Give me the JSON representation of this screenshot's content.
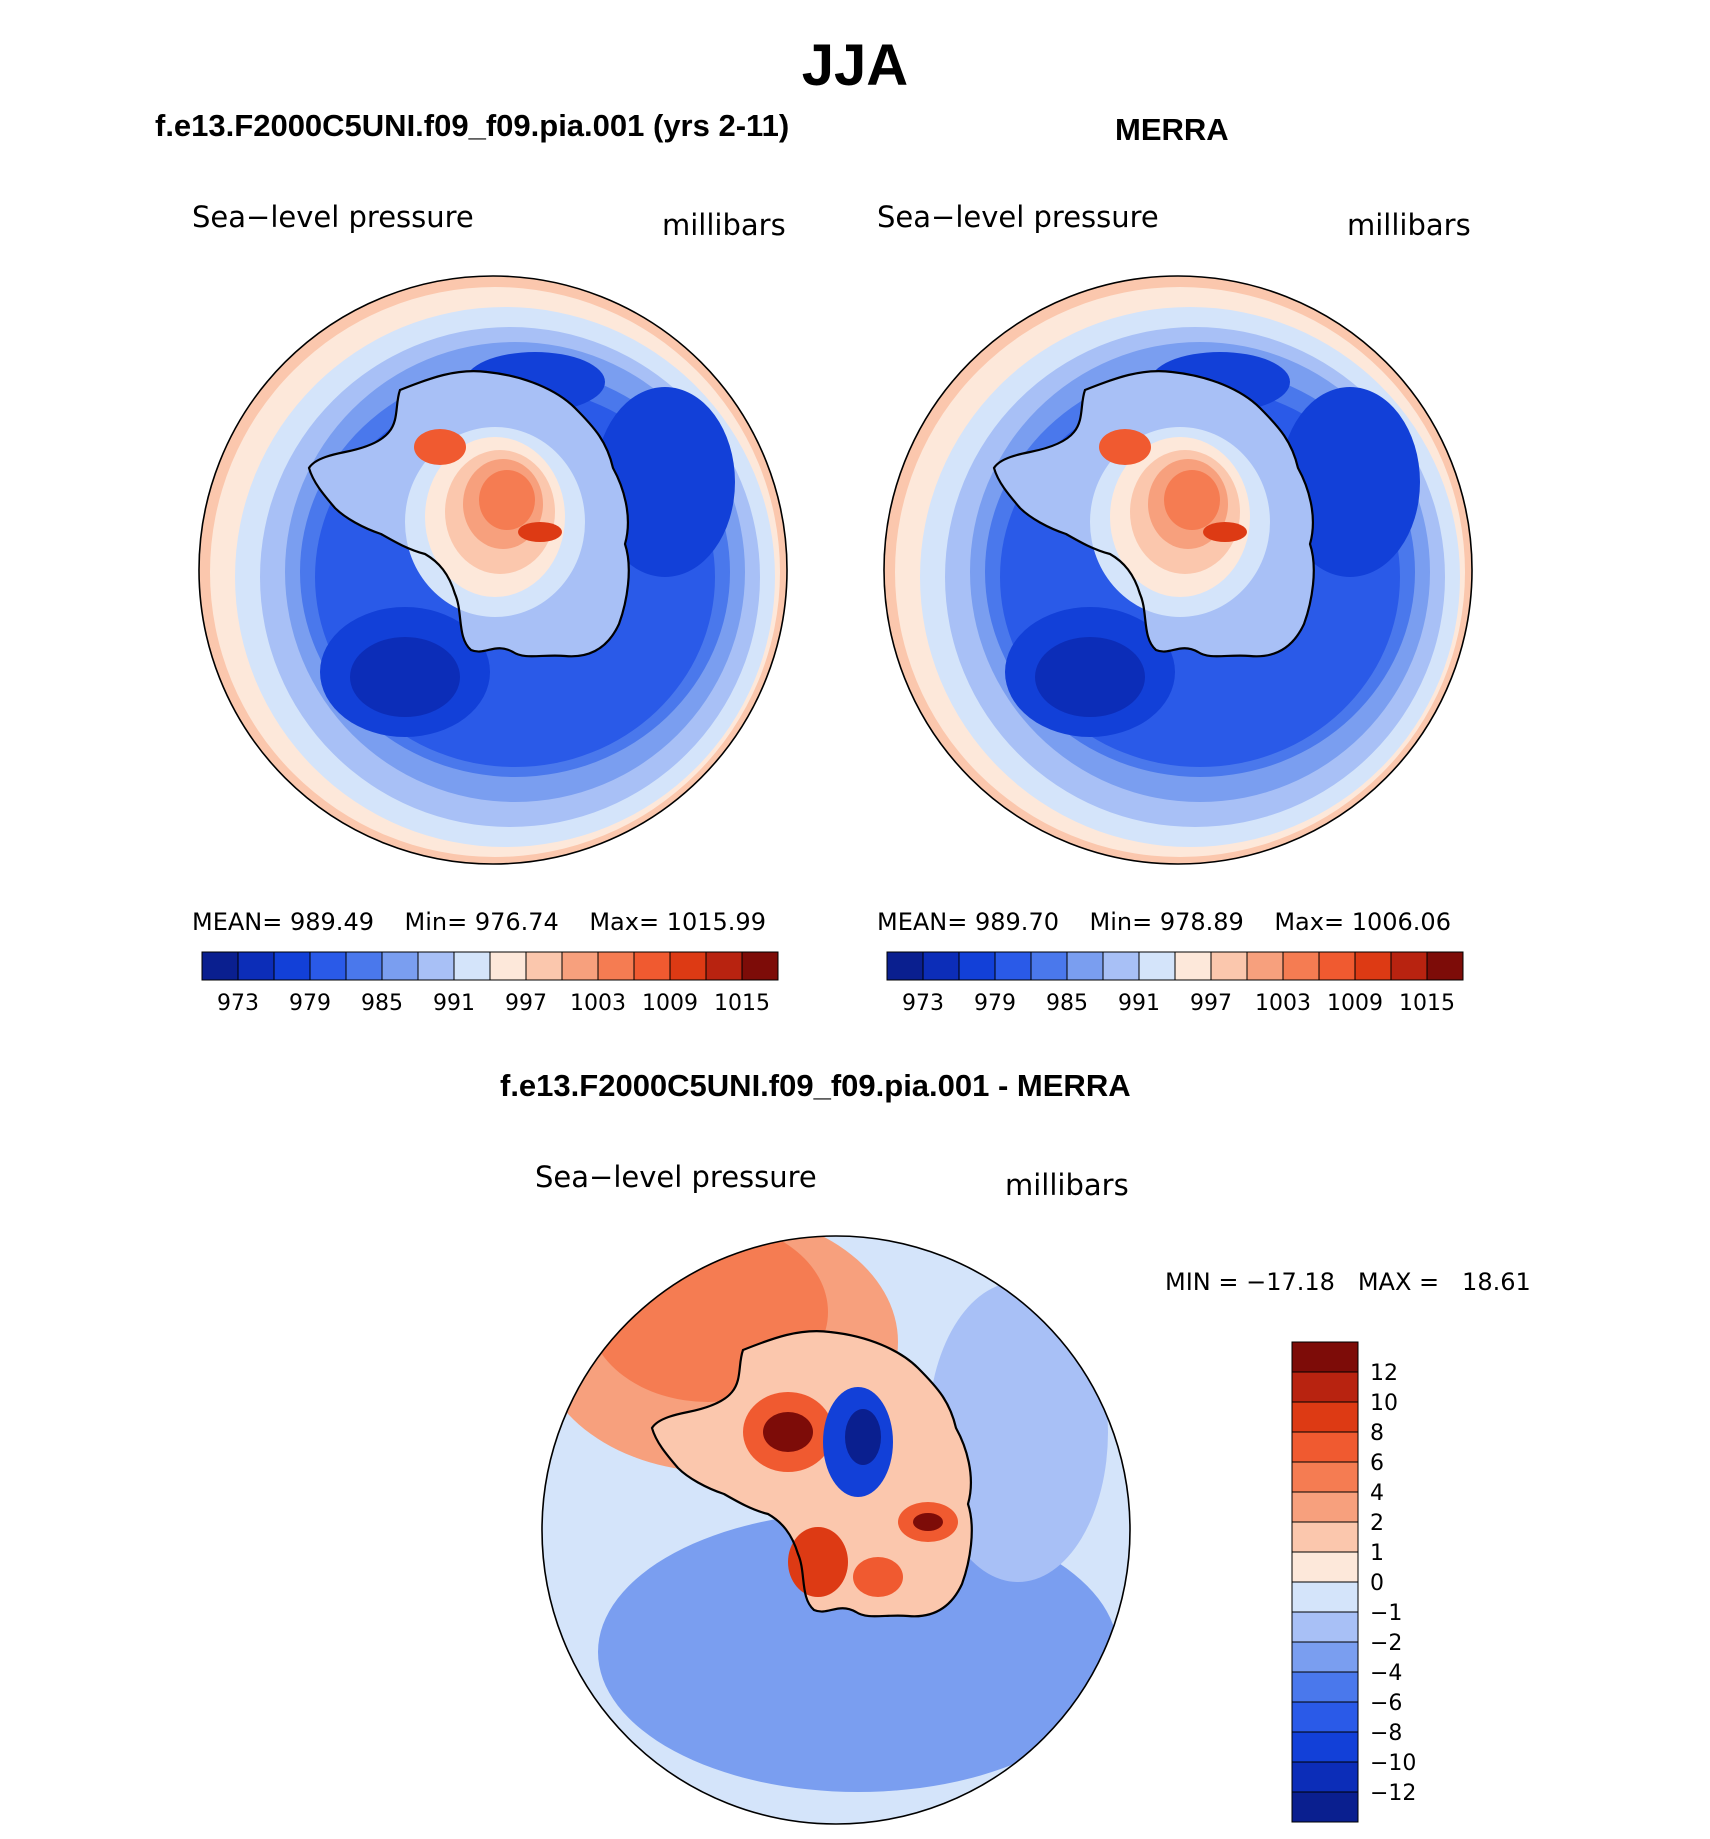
{
  "figure": {
    "season": "JJA",
    "model_title": "f.e13.F2000C5UNI.f09_f09.pia.001 (yrs 2-11)",
    "obs_title": "MERRA",
    "diff_title": "f.e13.F2000C5UNI.f09_f09.pia.001 - MERRA"
  },
  "chart_data": [
    {
      "type": "heatmap",
      "projection": "south-polar-stereographic",
      "title": "f.e13.F2000C5UNI.f09_f09.pia.001 (yrs 2-11)",
      "left_label": "Sea−level pressure",
      "right_label": "millibars",
      "stats": {
        "mean": "989.49",
        "min": "976.74",
        "max": "1015.99"
      },
      "stats_text": {
        "mean_label": "MEAN=",
        "min_label": "Min=",
        "max_label": "Max="
      },
      "colorbar": {
        "orientation": "horizontal",
        "tick_labels": [
          "973",
          "979",
          "985",
          "991",
          "997",
          "1003",
          "1009",
          "1015"
        ],
        "colors": [
          "#0a1f8f",
          "#0c2db8",
          "#1240d8",
          "#2a5ae8",
          "#4a78ec",
          "#7a9ef0",
          "#a8c0f6",
          "#d4e4fa",
          "#fde8da",
          "#fbc7ad",
          "#f7a07d",
          "#f57c52",
          "#f05a30",
          "#dd3a14",
          "#b82310",
          "#7d0c08"
        ]
      },
      "features": [
        "low pressure ring around Antarctica",
        "high pressure over East Antarctic plateau"
      ]
    },
    {
      "type": "heatmap",
      "projection": "south-polar-stereographic",
      "title": "MERRA",
      "left_label": "Sea−level pressure",
      "right_label": "millibars",
      "stats": {
        "mean": "989.70",
        "min": "978.89",
        "max": "1006.06"
      },
      "stats_text": {
        "mean_label": "MEAN=",
        "min_label": "Min=",
        "max_label": "Max="
      },
      "colorbar": {
        "orientation": "horizontal",
        "tick_labels": [
          "973",
          "979",
          "985",
          "991",
          "997",
          "1003",
          "1009",
          "1015"
        ],
        "colors": [
          "#0a1f8f",
          "#0c2db8",
          "#1240d8",
          "#2a5ae8",
          "#4a78ec",
          "#7a9ef0",
          "#a8c0f6",
          "#d4e4fa",
          "#fde8da",
          "#fbc7ad",
          "#f7a07d",
          "#f57c52",
          "#f05a30",
          "#dd3a14",
          "#b82310",
          "#7d0c08"
        ]
      },
      "features": [
        "low pressure ring around Antarctica",
        "high pressure over East Antarctic plateau"
      ]
    },
    {
      "type": "heatmap",
      "projection": "south-polar-stereographic",
      "title": "f.e13.F2000C5UNI.f09_f09.pia.001 - MERRA",
      "left_label": "Sea−level pressure",
      "right_label": "millibars",
      "stats": {
        "min": "−17.18",
        "max": "18.61"
      },
      "stats_text": {
        "min_label": "MIN  =",
        "max_label": "MAX  ="
      },
      "colorbar": {
        "orientation": "vertical",
        "tick_labels": [
          "12",
          "10",
          "8",
          "6",
          "4",
          "2",
          "1",
          "0",
          "−1",
          "−2",
          "−4",
          "−6",
          "−8",
          "−10",
          "−12"
        ],
        "colors": [
          "#7d0c08",
          "#b82310",
          "#dd3a14",
          "#f05a30",
          "#f57c52",
          "#f7a07d",
          "#fbc7ad",
          "#fde8da",
          "#d4e4fa",
          "#a8c0f6",
          "#7a9ef0",
          "#4a78ec",
          "#2a5ae8",
          "#1240d8",
          "#0c2db8",
          "#0a1f8f"
        ]
      }
    }
  ]
}
